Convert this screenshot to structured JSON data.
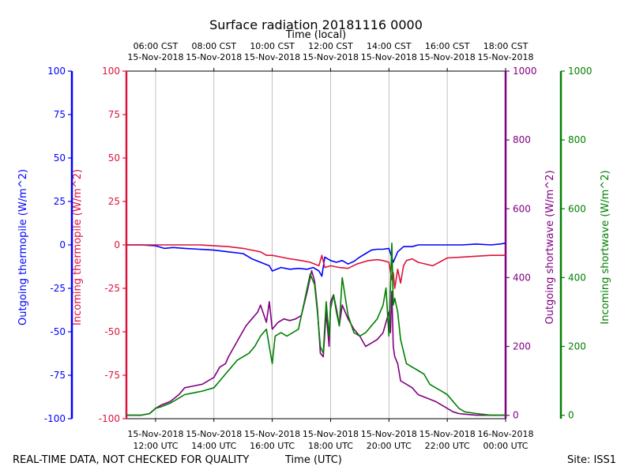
{
  "chart_data": {
    "type": "line",
    "title": "Surface radiation 20181116 0000",
    "top_axis_label": "Time (local)",
    "xlabel": "Time (UTC)",
    "xlim_hours_utc": [
      11.0,
      24.0
    ],
    "grid": "vertical-only",
    "top_ticks": [
      {
        "hour": 12,
        "time": "06:00 CST",
        "date": "15-Nov-2018"
      },
      {
        "hour": 14,
        "time": "08:00 CST",
        "date": "15-Nov-2018"
      },
      {
        "hour": 16,
        "time": "10:00 CST",
        "date": "15-Nov-2018"
      },
      {
        "hour": 18,
        "time": "12:00 CST",
        "date": "15-Nov-2018"
      },
      {
        "hour": 20,
        "time": "14:00 CST",
        "date": "15-Nov-2018"
      },
      {
        "hour": 22,
        "time": "16:00 CST",
        "date": "15-Nov-2018"
      },
      {
        "hour": 24,
        "time": "18:00 CST",
        "date": "15-Nov-2018"
      }
    ],
    "bottom_ticks": [
      {
        "hour": 12,
        "date": "15-Nov-2018",
        "time": "12:00 UTC"
      },
      {
        "hour": 14,
        "date": "15-Nov-2018",
        "time": "14:00 UTC"
      },
      {
        "hour": 16,
        "date": "15-Nov-2018",
        "time": "16:00 UTC"
      },
      {
        "hour": 18,
        "date": "15-Nov-2018",
        "time": "18:00 UTC"
      },
      {
        "hour": 20,
        "date": "15-Nov-2018",
        "time": "20:00 UTC"
      },
      {
        "hour": 22,
        "date": "15-Nov-2018",
        "time": "22:00 UTC"
      },
      {
        "hour": 24,
        "date": "16-Nov-2018",
        "time": "00:00 UTC"
      }
    ],
    "axes": [
      {
        "id": "out_thermo",
        "label": "Outgoing thermopile (W/m^2)",
        "color": "#0000ff",
        "ylim": [
          -100,
          100
        ],
        "ticks": [
          -100,
          -75,
          -50,
          -25,
          0,
          25,
          50,
          75,
          100
        ]
      },
      {
        "id": "in_thermo",
        "label": "Incoming thermopile (W/m^2)",
        "color": "#dc143c",
        "ylim": [
          -100,
          100
        ],
        "ticks": [
          -100,
          -75,
          -50,
          -25,
          0,
          25,
          50,
          75,
          100
        ]
      },
      {
        "id": "out_sw",
        "label": "Outgoing shortwave (W/m^2)",
        "color": "#800080",
        "ylim": [
          -10,
          1000
        ],
        "ticks": [
          0,
          200,
          400,
          600,
          800,
          1000
        ]
      },
      {
        "id": "in_sw",
        "label": "Incoming shortwave (W/m^2)",
        "color": "#008000",
        "ylim": [
          -10,
          1000
        ],
        "ticks": [
          0,
          200,
          400,
          600,
          800,
          1000
        ]
      }
    ],
    "series": [
      {
        "name": "Outgoing thermopile",
        "axis": "out_thermo",
        "color": "#0000ff",
        "x": [
          11.0,
          11.5,
          12.0,
          12.3,
          12.6,
          13.0,
          13.5,
          14.0,
          14.5,
          15.0,
          15.3,
          15.6,
          15.9,
          16.0,
          16.3,
          16.6,
          16.9,
          17.2,
          17.4,
          17.6,
          17.7,
          17.8,
          18.0,
          18.2,
          18.4,
          18.6,
          18.8,
          19.0,
          19.2,
          19.4,
          19.6,
          19.8,
          20.0,
          20.15,
          20.3,
          20.5,
          20.8,
          21.0,
          21.5,
          22.0,
          22.5,
          23.0,
          23.5,
          23.8,
          24.0
        ],
        "y": [
          0,
          0,
          -0.5,
          -2.0,
          -1.5,
          -2.0,
          -2.5,
          -3.0,
          -4.0,
          -5.0,
          -8.0,
          -10.0,
          -12.0,
          -15.0,
          -13.0,
          -14.0,
          -13.5,
          -14.0,
          -13.0,
          -15.0,
          -18.0,
          -7.0,
          -9.0,
          -10.0,
          -9.0,
          -11.0,
          -9.5,
          -7.0,
          -5.0,
          -3.0,
          -2.5,
          -2.5,
          -2.0,
          -10.0,
          -4.0,
          -1.0,
          -1.0,
          0.0,
          0.0,
          0.0,
          0.0,
          0.5,
          0.0,
          0.5,
          1.0
        ]
      },
      {
        "name": "Incoming thermopile",
        "axis": "in_thermo",
        "color": "#dc143c",
        "x": [
          11.0,
          11.5,
          12.0,
          12.5,
          13.0,
          13.5,
          14.0,
          14.5,
          15.0,
          15.3,
          15.6,
          15.8,
          16.0,
          16.3,
          16.6,
          17.0,
          17.3,
          17.6,
          17.7,
          17.8,
          18.0,
          18.3,
          18.6,
          18.9,
          19.1,
          19.3,
          19.6,
          19.8,
          20.0,
          20.1,
          20.15,
          20.2,
          20.3,
          20.4,
          20.5,
          20.6,
          20.8,
          21.0,
          21.5,
          22.0,
          22.5,
          23.0,
          23.5,
          24.0
        ],
        "y": [
          0,
          0,
          0,
          0,
          0,
          0,
          -0.5,
          -1.0,
          -2.0,
          -3.0,
          -4.0,
          -6.0,
          -6.0,
          -7.0,
          -8.0,
          -9.0,
          -10.0,
          -12.0,
          -6.0,
          -13.0,
          -12.0,
          -13.0,
          -13.5,
          -11.0,
          -10.0,
          -9.0,
          -8.5,
          -9.0,
          -10.0,
          -20.0,
          -16.0,
          -25.0,
          -14.0,
          -22.0,
          -12.0,
          -9.0,
          -8.0,
          -10.0,
          -12.0,
          -7.5,
          -7.0,
          -6.5,
          -6.0,
          -6.0
        ]
      },
      {
        "name": "Outgoing shortwave",
        "axis": "out_sw",
        "color": "#800080",
        "x": [
          11.0,
          11.5,
          11.8,
          12.0,
          12.2,
          12.5,
          12.8,
          13.0,
          13.3,
          13.6,
          14.0,
          14.2,
          14.4,
          14.5,
          14.7,
          14.9,
          15.1,
          15.3,
          15.5,
          15.6,
          15.8,
          15.9,
          16.0,
          16.2,
          16.4,
          16.6,
          16.8,
          17.0,
          17.2,
          17.35,
          17.45,
          17.55,
          17.65,
          17.75,
          17.85,
          17.95,
          18.0,
          18.1,
          18.2,
          18.3,
          18.4,
          18.6,
          18.8,
          19.0,
          19.2,
          19.4,
          19.6,
          19.8,
          20.0,
          20.05,
          20.1,
          20.15,
          20.2,
          20.3,
          20.4,
          20.6,
          20.8,
          21.0,
          21.3,
          21.6,
          21.8,
          22.0,
          22.2,
          22.4,
          22.6,
          23.0,
          23.5,
          24.0
        ],
        "y": [
          0,
          0,
          5,
          20,
          30,
          40,
          60,
          80,
          85,
          90,
          110,
          140,
          150,
          170,
          200,
          230,
          260,
          280,
          300,
          320,
          270,
          330,
          250,
          270,
          280,
          275,
          280,
          290,
          360,
          420,
          390,
          310,
          180,
          170,
          300,
          200,
          330,
          350,
          310,
          260,
          320,
          280,
          250,
          230,
          200,
          210,
          220,
          240,
          300,
          240,
          360,
          200,
          170,
          150,
          100,
          90,
          80,
          60,
          50,
          40,
          30,
          20,
          10,
          5,
          3,
          0,
          0,
          0
        ]
      },
      {
        "name": "Incoming shortwave",
        "axis": "in_sw",
        "color": "#008000",
        "x": [
          11.0,
          11.5,
          11.8,
          12.0,
          12.2,
          12.5,
          12.8,
          13.0,
          13.3,
          13.6,
          14.0,
          14.2,
          14.4,
          14.6,
          14.8,
          15.0,
          15.2,
          15.4,
          15.6,
          15.8,
          16.0,
          16.1,
          16.3,
          16.5,
          16.7,
          16.9,
          17.1,
          17.3,
          17.45,
          17.55,
          17.65,
          17.75,
          17.85,
          17.95,
          18.0,
          18.1,
          18.2,
          18.3,
          18.4,
          18.6,
          18.8,
          19.0,
          19.2,
          19.4,
          19.6,
          19.8,
          19.9,
          20.0,
          20.1,
          20.15,
          20.2,
          20.3,
          20.4,
          20.6,
          20.8,
          21.0,
          21.2,
          21.4,
          21.6,
          21.8,
          22.0,
          22.2,
          22.4,
          22.6,
          23.0,
          23.5,
          24.0
        ],
        "y": [
          0,
          0,
          5,
          20,
          25,
          35,
          50,
          60,
          65,
          70,
          80,
          100,
          120,
          140,
          160,
          170,
          180,
          200,
          230,
          250,
          150,
          230,
          240,
          230,
          240,
          250,
          330,
          410,
          380,
          300,
          200,
          180,
          330,
          230,
          310,
          350,
          300,
          260,
          400,
          290,
          240,
          230,
          240,
          260,
          280,
          320,
          370,
          230,
          500,
          320,
          340,
          300,
          220,
          150,
          140,
          130,
          120,
          90,
          80,
          70,
          60,
          40,
          20,
          10,
          5,
          0,
          0
        ]
      }
    ]
  },
  "footer": {
    "left": "REAL-TIME DATA, NOT CHECKED FOR QUALITY",
    "center": "Time (UTC)",
    "right": "Site: ISS1"
  }
}
